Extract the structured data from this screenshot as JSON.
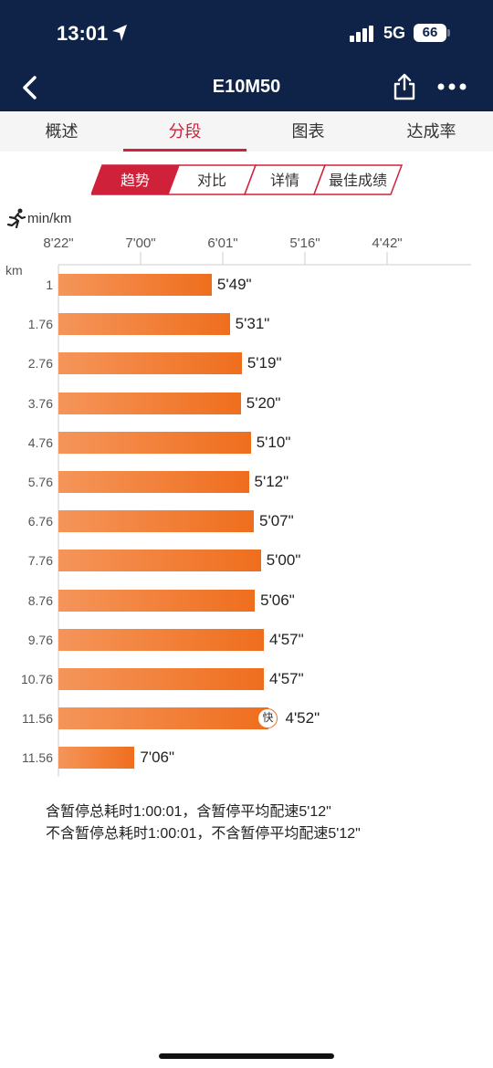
{
  "status_bar": {
    "time": "13:01",
    "network": "5G",
    "battery": "66"
  },
  "header": {
    "title": "E10M50"
  },
  "tabs": [
    {
      "label": "概述",
      "active": false
    },
    {
      "label": "分段",
      "active": true
    },
    {
      "label": "图表",
      "active": false
    },
    {
      "label": "达成率",
      "active": false
    }
  ],
  "segments": [
    {
      "label": "趋势",
      "active": true
    },
    {
      "label": "对比",
      "active": false
    },
    {
      "label": "详情",
      "active": false
    },
    {
      "label": "最佳成绩",
      "active": false
    }
  ],
  "chart_data": {
    "type": "bar",
    "orientation": "horizontal",
    "unit_label": "min/km",
    "category_label": "km",
    "x_ticks": [
      "8'22\"",
      "7'00\"",
      "6'01\"",
      "5'16\"",
      "4'42\""
    ],
    "categories": [
      "1",
      "1.76",
      "2.76",
      "3.76",
      "4.76",
      "5.76",
      "6.76",
      "7.76",
      "8.76",
      "9.76",
      "10.76",
      "11.56",
      "11.56"
    ],
    "value_labels": [
      "5'49\"",
      "5'31\"",
      "5'19\"",
      "5'20\"",
      "5'10\"",
      "5'12\"",
      "5'07\"",
      "5'00\"",
      "5'06\"",
      "4'57\"",
      "4'57\"",
      "4'52\"",
      "7'06\""
    ],
    "values_seconds": [
      349,
      331,
      319,
      320,
      310,
      312,
      307,
      300,
      306,
      297,
      297,
      292,
      426
    ],
    "fastest_index": 11,
    "fastest_badge": "快",
    "bar_color": "#ef6e1d"
  },
  "summary": {
    "line1": "含暂停总耗时1:00:01，含暂停平均配速5'12\"",
    "line2": "不含暂停总耗时1:00:01，不含暂停平均配速5'12\""
  }
}
